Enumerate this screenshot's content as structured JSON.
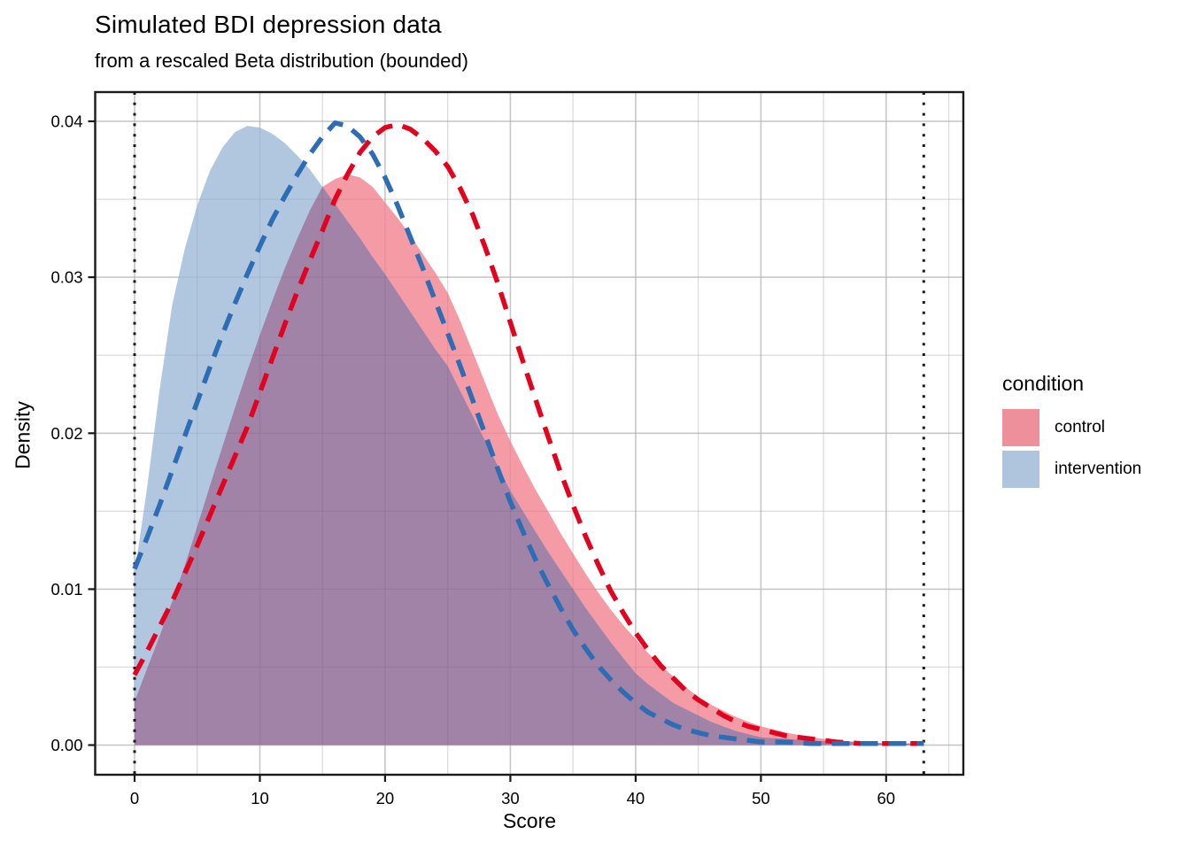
{
  "chart_data": {
    "type": "area",
    "title": "Simulated BDI depression data",
    "subtitle": "from a rescaled Beta distribution (bounded)",
    "xlabel": "Score",
    "ylabel": "Density",
    "xlim": [
      -3.15,
      66.15
    ],
    "ylim": [
      -0.002,
      0.0419
    ],
    "grid": "on",
    "x_ticks": [
      0,
      10,
      20,
      30,
      40,
      50,
      60
    ],
    "x_minor": [
      5,
      15,
      25,
      35,
      45,
      55,
      65
    ],
    "y_ticks": [
      0,
      0.01,
      0.02,
      0.03,
      0.04
    ],
    "y_tick_labels": [
      "0.00",
      "0.01",
      "0.02",
      "0.03",
      "0.04"
    ],
    "y_minor": [
      0.005,
      0.015,
      0.025,
      0.035
    ],
    "bound_vlines": [
      0,
      63
    ],
    "vline_color": "#1a1a1a",
    "overlap_color": "#a183a8",
    "x": [
      0,
      1,
      2,
      3,
      4,
      5,
      6,
      7,
      8,
      9,
      10,
      11,
      12,
      13,
      14,
      15,
      16,
      17,
      18,
      19,
      20,
      21,
      22,
      23,
      24,
      25,
      26,
      27,
      28,
      29,
      30,
      31,
      32,
      33,
      34,
      35,
      36,
      37,
      38,
      39,
      40,
      41,
      42,
      43,
      44,
      45,
      46,
      47,
      48,
      49,
      50,
      52,
      54,
      56,
      58,
      60,
      63
    ],
    "series": [
      {
        "name": "control density fill",
        "condition": "control",
        "style": "fill",
        "color": "#f49ba6",
        "y": [
          0.0028,
          0.0049,
          0.007,
          0.0092,
          0.0115,
          0.014,
          0.0166,
          0.0191,
          0.0216,
          0.024,
          0.0263,
          0.0285,
          0.0306,
          0.0325,
          0.0343,
          0.0358,
          0.0363,
          0.0366,
          0.0364,
          0.0358,
          0.0348,
          0.0338,
          0.0327,
          0.0315,
          0.0303,
          0.029,
          0.0272,
          0.0252,
          0.0232,
          0.0212,
          0.0195,
          0.0179,
          0.0164,
          0.015,
          0.0136,
          0.0123,
          0.011,
          0.0098,
          0.0087,
          0.0077,
          0.0068,
          0.0059,
          0.0051,
          0.0044,
          0.0037,
          0.0031,
          0.0026,
          0.0022,
          0.0018,
          0.0015,
          0.0012,
          0.0008,
          0.0005,
          0.0003,
          0.0002,
          0.0001,
          0.0001
        ]
      },
      {
        "name": "intervention density fill",
        "condition": "intervention",
        "style": "fill",
        "color": "#b1c7e0",
        "y": [
          0.011,
          0.0165,
          0.0228,
          0.0282,
          0.0318,
          0.0346,
          0.0368,
          0.0383,
          0.0393,
          0.0397,
          0.0396,
          0.0392,
          0.0386,
          0.0378,
          0.0369,
          0.0358,
          0.0347,
          0.0336,
          0.0325,
          0.0313,
          0.0302,
          0.029,
          0.0278,
          0.0266,
          0.0254,
          0.0243,
          0.0227,
          0.0211,
          0.0195,
          0.0179,
          0.0163,
          0.015,
          0.0137,
          0.0124,
          0.0112,
          0.01,
          0.0088,
          0.0077,
          0.0066,
          0.0056,
          0.0046,
          0.0039,
          0.0033,
          0.0027,
          0.0023,
          0.0019,
          0.0015,
          0.0012,
          0.0009,
          0.0007,
          0.0005,
          0.0004,
          0.0003,
          0.0002,
          0.0002,
          0.0001,
          0.0001
        ]
      },
      {
        "name": "control theoretical density",
        "condition": "control",
        "style": "dashed",
        "color": "#e2031f",
        "y": [
          0.0045,
          0.006,
          0.0076,
          0.0092,
          0.011,
          0.0128,
          0.0147,
          0.0166,
          0.0185,
          0.0204,
          0.0226,
          0.0248,
          0.027,
          0.0291,
          0.0311,
          0.033,
          0.035,
          0.0366,
          0.038,
          0.039,
          0.0396,
          0.0398,
          0.0395,
          0.0389,
          0.0381,
          0.0371,
          0.0357,
          0.034,
          0.0319,
          0.0296,
          0.0271,
          0.0246,
          0.0222,
          0.0198,
          0.0175,
          0.0154,
          0.0134,
          0.0116,
          0.0099,
          0.0085,
          0.0072,
          0.0061,
          0.0051,
          0.0043,
          0.0035,
          0.0029,
          0.0024,
          0.0019,
          0.0015,
          0.0012,
          0.001,
          0.0006,
          0.0004,
          0.0002,
          0.0001,
          0.0001,
          0.0001
        ]
      },
      {
        "name": "intervention theoretical density",
        "condition": "intervention",
        "style": "dashed",
        "color": "#2e6db4",
        "y": [
          0.0113,
          0.0133,
          0.0154,
          0.0176,
          0.0198,
          0.022,
          0.0242,
          0.0263,
          0.0283,
          0.0302,
          0.032,
          0.0337,
          0.0352,
          0.0366,
          0.0379,
          0.039,
          0.0399,
          0.0397,
          0.039,
          0.0379,
          0.0364,
          0.0346,
          0.0326,
          0.0306,
          0.0285,
          0.0264,
          0.0243,
          0.0221,
          0.0199,
          0.0177,
          0.0156,
          0.0137,
          0.0119,
          0.0103,
          0.0088,
          0.0074,
          0.0062,
          0.0051,
          0.0042,
          0.0034,
          0.0027,
          0.0021,
          0.0017,
          0.0013,
          0.001,
          0.0008,
          0.0006,
          0.0005,
          0.0004,
          0.0003,
          0.0002,
          0.0002,
          0.0001,
          0.0001,
          0.0001,
          0.0001,
          0.0001
        ]
      }
    ],
    "legend": {
      "title": "condition",
      "position": "right",
      "entries": [
        {
          "label": "control",
          "color": "#ee8f9c"
        },
        {
          "label": "intervention",
          "color": "#afc4dd"
        }
      ]
    }
  }
}
